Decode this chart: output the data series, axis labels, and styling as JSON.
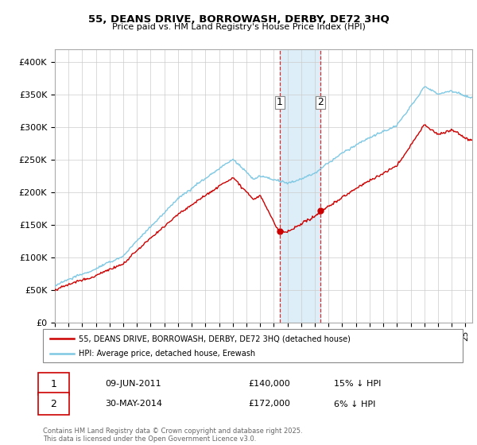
{
  "title": "55, DEANS DRIVE, BORROWASH, DERBY, DE72 3HQ",
  "subtitle": "Price paid vs. HM Land Registry's House Price Index (HPI)",
  "ylabel_ticks": [
    "£0",
    "£50K",
    "£100K",
    "£150K",
    "£200K",
    "£250K",
    "£300K",
    "£350K",
    "£400K"
  ],
  "ytick_vals": [
    0,
    50000,
    100000,
    150000,
    200000,
    250000,
    300000,
    350000,
    400000
  ],
  "ylim": [
    0,
    420000
  ],
  "xlim_start": 1995.0,
  "xlim_end": 2025.5,
  "hpi_color": "#7ec8e3",
  "price_color": "#cc0000",
  "shade_color": "#ddeef8",
  "marker1_date": 2011.44,
  "marker2_date": 2014.42,
  "marker1_price": 140000,
  "marker2_price": 172000,
  "marker1_label": "09-JUN-2011",
  "marker2_label": "30-MAY-2014",
  "marker1_hpi_diff": "15% ↓ HPI",
  "marker2_hpi_diff": "6% ↓ HPI",
  "legend_red": "55, DEANS DRIVE, BORROWASH, DERBY, DE72 3HQ (detached house)",
  "legend_blue": "HPI: Average price, detached house, Erewash",
  "footer": "Contains HM Land Registry data © Crown copyright and database right 2025.\nThis data is licensed under the Open Government Licence v3.0.",
  "bg_color": "#ffffff",
  "grid_color": "#cccccc"
}
